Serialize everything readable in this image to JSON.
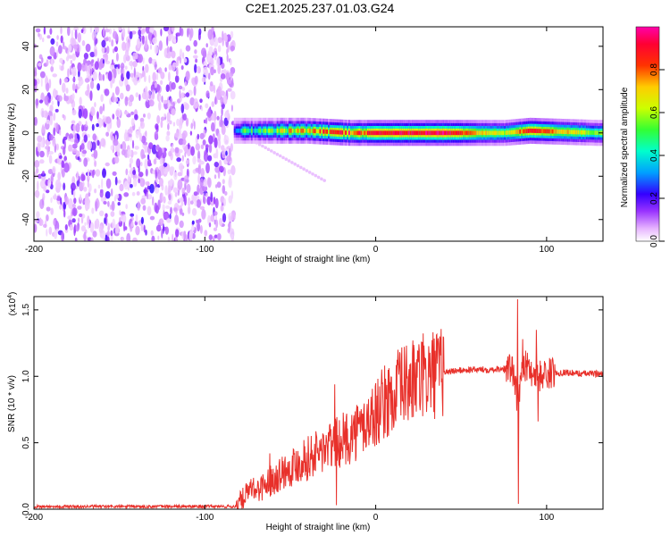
{
  "figure_title": "C2E1.2025.237.01.03.G24",
  "colors": {
    "snr_line": "#e8302a",
    "colormap": [
      "#ffffff",
      "#cc66ff",
      "#6600ff",
      "#0000ff",
      "#00ccff",
      "#00ff66",
      "#ffff00",
      "#ff0000",
      "#ff00cc"
    ]
  },
  "chart_data": [
    {
      "type": "heatmap",
      "title": "C2E1.2025.237.01.03.G24",
      "xlabel": "Height of straight line (km)",
      "ylabel": "Frequency (Hz)",
      "xlim": [
        -200,
        133
      ],
      "ylim": [
        -50,
        49
      ],
      "x_ticks": [
        -200,
        -100,
        0,
        100
      ],
      "x_tick_labels": [
        "-200",
        "-100",
        "0",
        "100"
      ],
      "y_ticks": [
        -40,
        -20,
        0,
        20,
        40
      ],
      "y_tick_labels": [
        "-40",
        "-20",
        "0",
        "20",
        "40"
      ],
      "noise_region_x": [
        -200,
        -83
      ],
      "ridge": {
        "x_start": -83,
        "x_end": 133,
        "center_freq": 0,
        "description_points": [
          {
            "x": -80,
            "freq": 1,
            "amp": 0.4
          },
          {
            "x": -60,
            "freq": 1,
            "amp": 0.55
          },
          {
            "x": -40,
            "freq": 1,
            "amp": 0.7
          },
          {
            "x": -15,
            "freq": 0,
            "amp": 0.85
          },
          {
            "x": 0,
            "freq": 0,
            "amp": 0.9
          },
          {
            "x": 40,
            "freq": 0,
            "amp": 0.95
          },
          {
            "x": 75,
            "freq": 0,
            "amp": 0.6
          },
          {
            "x": 90,
            "freq": 1,
            "amp": 0.9
          },
          {
            "x": 130,
            "freq": 0,
            "amp": 0.55
          }
        ]
      },
      "faint_tail": {
        "x": [
          -80,
          -30
        ],
        "freq": [
          0,
          -22
        ]
      },
      "colorbar": {
        "label": "Normalized spectral amplitude",
        "range": [
          0,
          1
        ],
        "ticks": [
          0.0,
          0.2,
          0.4,
          0.6,
          0.8
        ],
        "tick_labels": [
          "0.0",
          "0.2",
          "0.4",
          "0.6",
          "0.8"
        ]
      }
    },
    {
      "type": "line",
      "title": "",
      "xlabel": "Height of straight line (km)",
      "ylabel": "SNR (10 * v/v)",
      "y_multiplier_label": "(x10",
      "y_multiplier_exp": "4",
      "y_multiplier_close": ")",
      "xlim": [
        -200,
        133
      ],
      "ylim": [
        0,
        1.6
      ],
      "x_ticks": [
        -200,
        -100,
        0,
        100
      ],
      "x_tick_labels": [
        "-200",
        "-100",
        "0",
        "100"
      ],
      "y_ticks": [
        0.0,
        0.5,
        1.0,
        1.5
      ],
      "y_tick_labels": [
        "0.0",
        "0.5",
        "1.0",
        "1.5"
      ],
      "series": [
        {
          "name": "SNR",
          "baseline_points": {
            "x": [
              -200,
              -150,
              -100,
              -82,
              -75,
              -65,
              -55,
              -45,
              -35,
              -25,
              -15,
              -5,
              5,
              15,
              25,
              35,
              45,
              55,
              65,
              75,
              80,
              83,
              86,
              90,
              95,
              100,
              110,
              120,
              133
            ],
            "y": [
              0.02,
              0.02,
              0.02,
              0.02,
              0.12,
              0.18,
              0.28,
              0.35,
              0.42,
              0.48,
              0.55,
              0.65,
              0.8,
              0.92,
              0.98,
              1.02,
              1.04,
              1.05,
              1.05,
              1.06,
              1.05,
              0.8,
              1.1,
              1.05,
              1.0,
              1.02,
              1.03,
              1.02,
              1.02
            ]
          },
          "spikes": [
            {
              "x": -72,
              "y": 0.2
            },
            {
              "x": -62,
              "y": 0.42
            },
            {
              "x": -42,
              "y": 0.52
            },
            {
              "x": -24,
              "y": 0.94
            },
            {
              "x": -23,
              "y": 0.03
            },
            {
              "x": 11,
              "y": 0.9
            },
            {
              "x": 83,
              "y": 1.58
            },
            {
              "x": 83.5,
              "y": 0.04
            },
            {
              "x": 86,
              "y": 1.28
            },
            {
              "x": 94,
              "y": 1.35
            },
            {
              "x": 95,
              "y": 0.66
            }
          ]
        }
      ]
    }
  ]
}
